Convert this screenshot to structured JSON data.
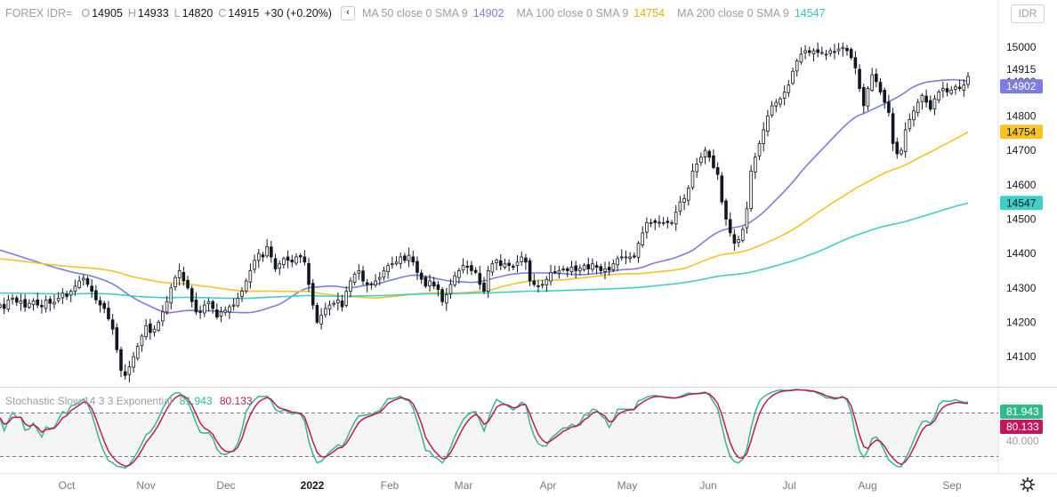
{
  "header": {
    "symbol": "FOREX IDR=",
    "open_label": "O",
    "open": "14905",
    "high_label": "H",
    "high": "14933",
    "low_label": "L",
    "low": "14820",
    "close_label": "C",
    "close": "14915",
    "change": "+30 (+0.20%)",
    "collapse_icon": "chevron-left-icon"
  },
  "moving_averages": [
    {
      "label": "MA 50 close 0 SMA 9",
      "value": "14902",
      "color": "#7b7ee0"
    },
    {
      "label": "MA 100 close 0 SMA 9",
      "value": "14754",
      "color": "#f7c325"
    },
    {
      "label": "MA 200 close 0 SMA 9",
      "value": "14547",
      "color": "#40cfc6"
    }
  ],
  "currency_button": "IDR",
  "price_axis": {
    "ticks": [
      "15000",
      "14900",
      "14800",
      "14700",
      "14600",
      "14500",
      "14400",
      "14300",
      "14200",
      "14100"
    ]
  },
  "price_labels": {
    "last": "14915",
    "ma50": "14902",
    "ma100": "14754",
    "ma200": "14547"
  },
  "stochastic": {
    "label": "Stochastic Slow 14 3 3 Exponential",
    "k_value": "81.943",
    "d_value": "80.133",
    "k_color": "#31b98d",
    "d_color": "#c2185b",
    "level_label": "40.000"
  },
  "time_axis": [
    "Oct",
    "Nov",
    "Dec",
    "2022",
    "Feb",
    "Mar",
    "Apr",
    "May",
    "Jun",
    "Jul",
    "Aug",
    "Sep"
  ],
  "settings_icon": "gear-icon",
  "chart_data": {
    "type": "candlestick",
    "title": "FOREX IDR=",
    "price_range": [
      14020,
      15060
    ],
    "stochastic_range": [
      0,
      100
    ],
    "stochastic_levels": [
      80,
      20
    ],
    "grid": false,
    "closes": [
      14250,
      14240,
      14265,
      14270,
      14258,
      14262,
      14244,
      14255,
      14262,
      14250,
      14245,
      14265,
      14255,
      14258,
      14270,
      14285,
      14275,
      14290,
      14305,
      14320,
      14328,
      14310,
      14290,
      14265,
      14250,
      14240,
      14210,
      14180,
      14120,
      14060,
      14045,
      14070,
      14100,
      14130,
      14160,
      14190,
      14170,
      14180,
      14200,
      14230,
      14260,
      14300,
      14330,
      14350,
      14320,
      14300,
      14260,
      14230,
      14230,
      14250,
      14260,
      14240,
      14215,
      14230,
      14235,
      14245,
      14250,
      14270,
      14290,
      14320,
      14350,
      14380,
      14400,
      14390,
      14420,
      14390,
      14355,
      14370,
      14385,
      14380,
      14375,
      14390,
      14390,
      14375,
      14310,
      14250,
      14200,
      14220,
      14240,
      14250,
      14255,
      14265,
      14245,
      14290,
      14320,
      14340,
      14350,
      14320,
      14310,
      14310,
      14320,
      14330,
      14350,
      14365,
      14370,
      14375,
      14390,
      14380,
      14395,
      14375,
      14345,
      14325,
      14305,
      14320,
      14305,
      14295,
      14260,
      14280,
      14310,
      14335,
      14350,
      14365,
      14360,
      14350,
      14345,
      14310,
      14290,
      14350,
      14370,
      14380,
      14365,
      14370,
      14365,
      14360,
      14375,
      14390,
      14375,
      14320,
      14310,
      14305,
      14310,
      14325,
      14345,
      14345,
      14350,
      14355,
      14350,
      14360,
      14350,
      14357,
      14365,
      14355,
      14370,
      14360,
      14350,
      14355,
      14352,
      14370,
      14385,
      14390,
      14390,
      14390,
      14390,
      14430,
      14460,
      14490,
      14490,
      14490,
      14490,
      14490,
      14490,
      14490,
      14520,
      14550,
      14560,
      14590,
      14640,
      14660,
      14680,
      14700,
      14680,
      14650,
      14630,
      14550,
      14500,
      14460,
      14430,
      14440,
      14470,
      14530,
      14640,
      14680,
      14720,
      14760,
      14800,
      14830,
      14840,
      14850,
      14870,
      14890,
      14930,
      14960,
      14980,
      14990,
      14985,
      14990,
      14985,
      14985,
      14980,
      14990,
      14985,
      14995,
      15000,
      14990,
      14970,
      14940,
      14880,
      14830,
      14880,
      14920,
      14900,
      14870,
      14840,
      14810,
      14720,
      14690,
      14700,
      14760,
      14790,
      14815,
      14840,
      14860,
      14840,
      14820,
      14850,
      14870,
      14880,
      14870,
      14875,
      14885,
      14880,
      14890,
      14915
    ]
  }
}
